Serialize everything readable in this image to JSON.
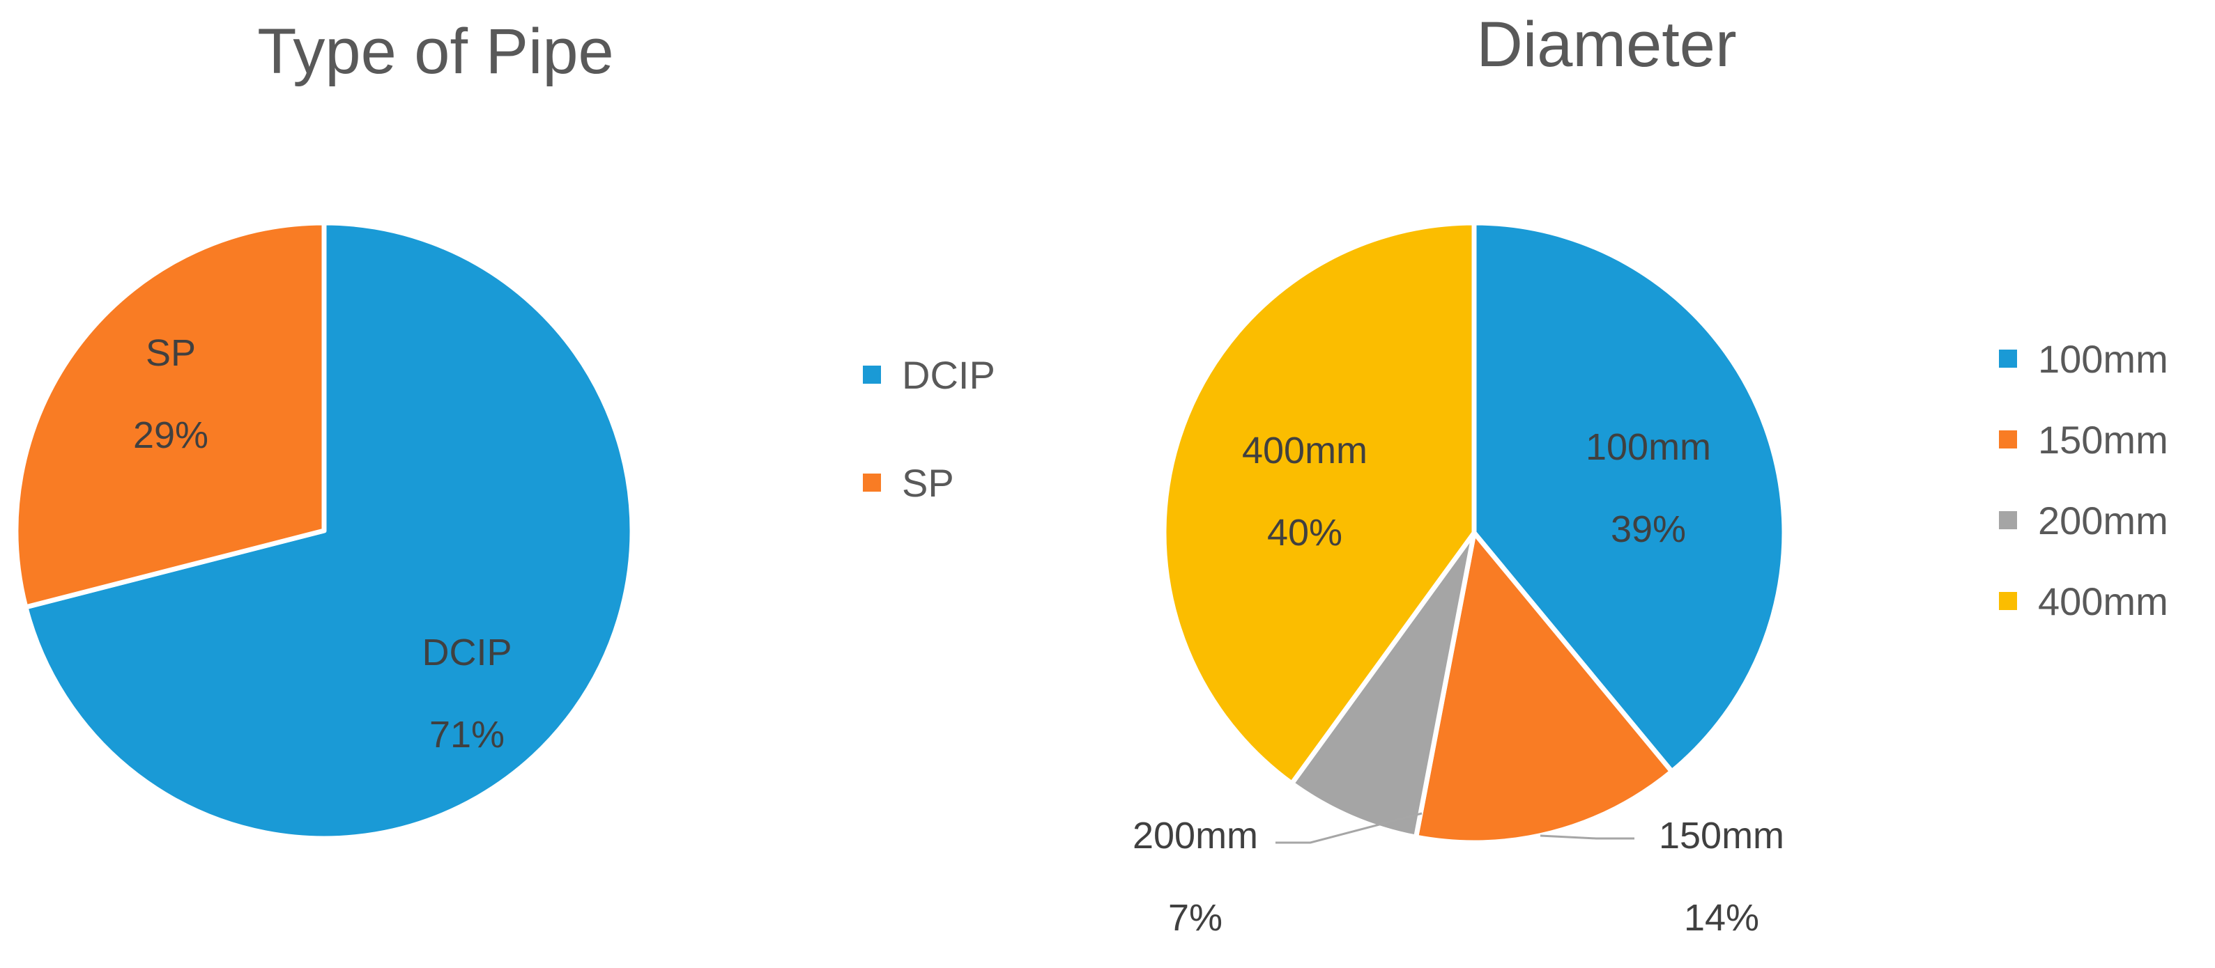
{
  "chart_data": [
    {
      "type": "pie",
      "title": "Type of Pipe",
      "categories": [
        "DCIP",
        "SP"
      ],
      "values": [
        71,
        29
      ],
      "value_labels": [
        "71%",
        "29%"
      ],
      "colors": [
        "#1a9ad6",
        "#f97c24"
      ],
      "legend": "right",
      "start_angle": "top",
      "direction": "clockwise"
    },
    {
      "type": "pie",
      "title": "Diameter",
      "categories": [
        "100mm",
        "150mm",
        "200mm",
        "400mm"
      ],
      "values": [
        39,
        14,
        7,
        40
      ],
      "value_labels": [
        "39%",
        "14%",
        "7%",
        "40%"
      ],
      "colors": [
        "#1a9ad6",
        "#f97c24",
        "#a5a5a5",
        "#fbbd00"
      ],
      "legend": "right",
      "start_angle": "top",
      "direction": "clockwise"
    }
  ]
}
